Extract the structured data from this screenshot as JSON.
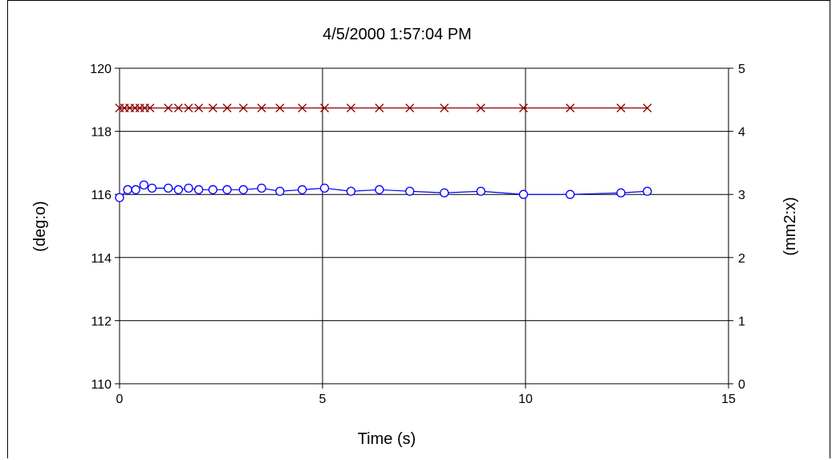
{
  "chart_data": {
    "type": "line",
    "title": "4/5/2000 1:57:04 PM",
    "xlabel": "Time (s)",
    "ylabel_left": "(deg:o)",
    "ylabel_right": "(mm2:x)",
    "xlim": [
      0,
      15
    ],
    "ylim_left": [
      110,
      120
    ],
    "ylim_right": [
      0,
      5
    ],
    "x_ticks": [
      "0",
      "5",
      "10",
      "15"
    ],
    "y_left_ticks": [
      "110",
      "112",
      "114",
      "116",
      "118",
      "120"
    ],
    "y_right_ticks": [
      "0",
      "1",
      "2",
      "3",
      "4",
      "5"
    ],
    "grid": true,
    "colors": {
      "series_o": "#0000ff",
      "series_x": "#8b0000"
    },
    "series": [
      {
        "marker": "o",
        "axis": "left",
        "x": [
          0,
          0.2,
          0.4,
          0.6,
          0.8,
          1.2,
          1.45,
          1.7,
          1.95,
          2.3,
          2.65,
          3.05,
          3.5,
          3.95,
          4.5,
          5.05,
          5.7,
          6.4,
          7.15,
          8.0,
          8.9,
          9.95,
          11.1,
          12.35,
          13.0
        ],
        "y": [
          115.9,
          116.15,
          116.15,
          116.3,
          116.2,
          116.2,
          116.15,
          116.2,
          116.15,
          116.15,
          116.15,
          116.15,
          116.2,
          116.1,
          116.15,
          116.2,
          116.1,
          116.15,
          116.1,
          116.05,
          116.1,
          116.0,
          116.0,
          116.05,
          116.1
        ]
      },
      {
        "marker": "x",
        "axis": "right",
        "x": [
          0,
          0.12,
          0.25,
          0.38,
          0.5,
          0.62,
          0.75,
          1.2,
          1.45,
          1.7,
          1.95,
          2.3,
          2.65,
          3.05,
          3.5,
          3.95,
          4.5,
          5.05,
          5.7,
          6.4,
          7.15,
          8.0,
          8.9,
          9.95,
          11.1,
          12.35,
          13.0
        ],
        "y": [
          4.37,
          4.37,
          4.37,
          4.37,
          4.37,
          4.37,
          4.37,
          4.37,
          4.37,
          4.37,
          4.37,
          4.37,
          4.37,
          4.37,
          4.37,
          4.37,
          4.37,
          4.37,
          4.37,
          4.37,
          4.37,
          4.37,
          4.37,
          4.37,
          4.37,
          4.37,
          4.37
        ]
      }
    ]
  }
}
